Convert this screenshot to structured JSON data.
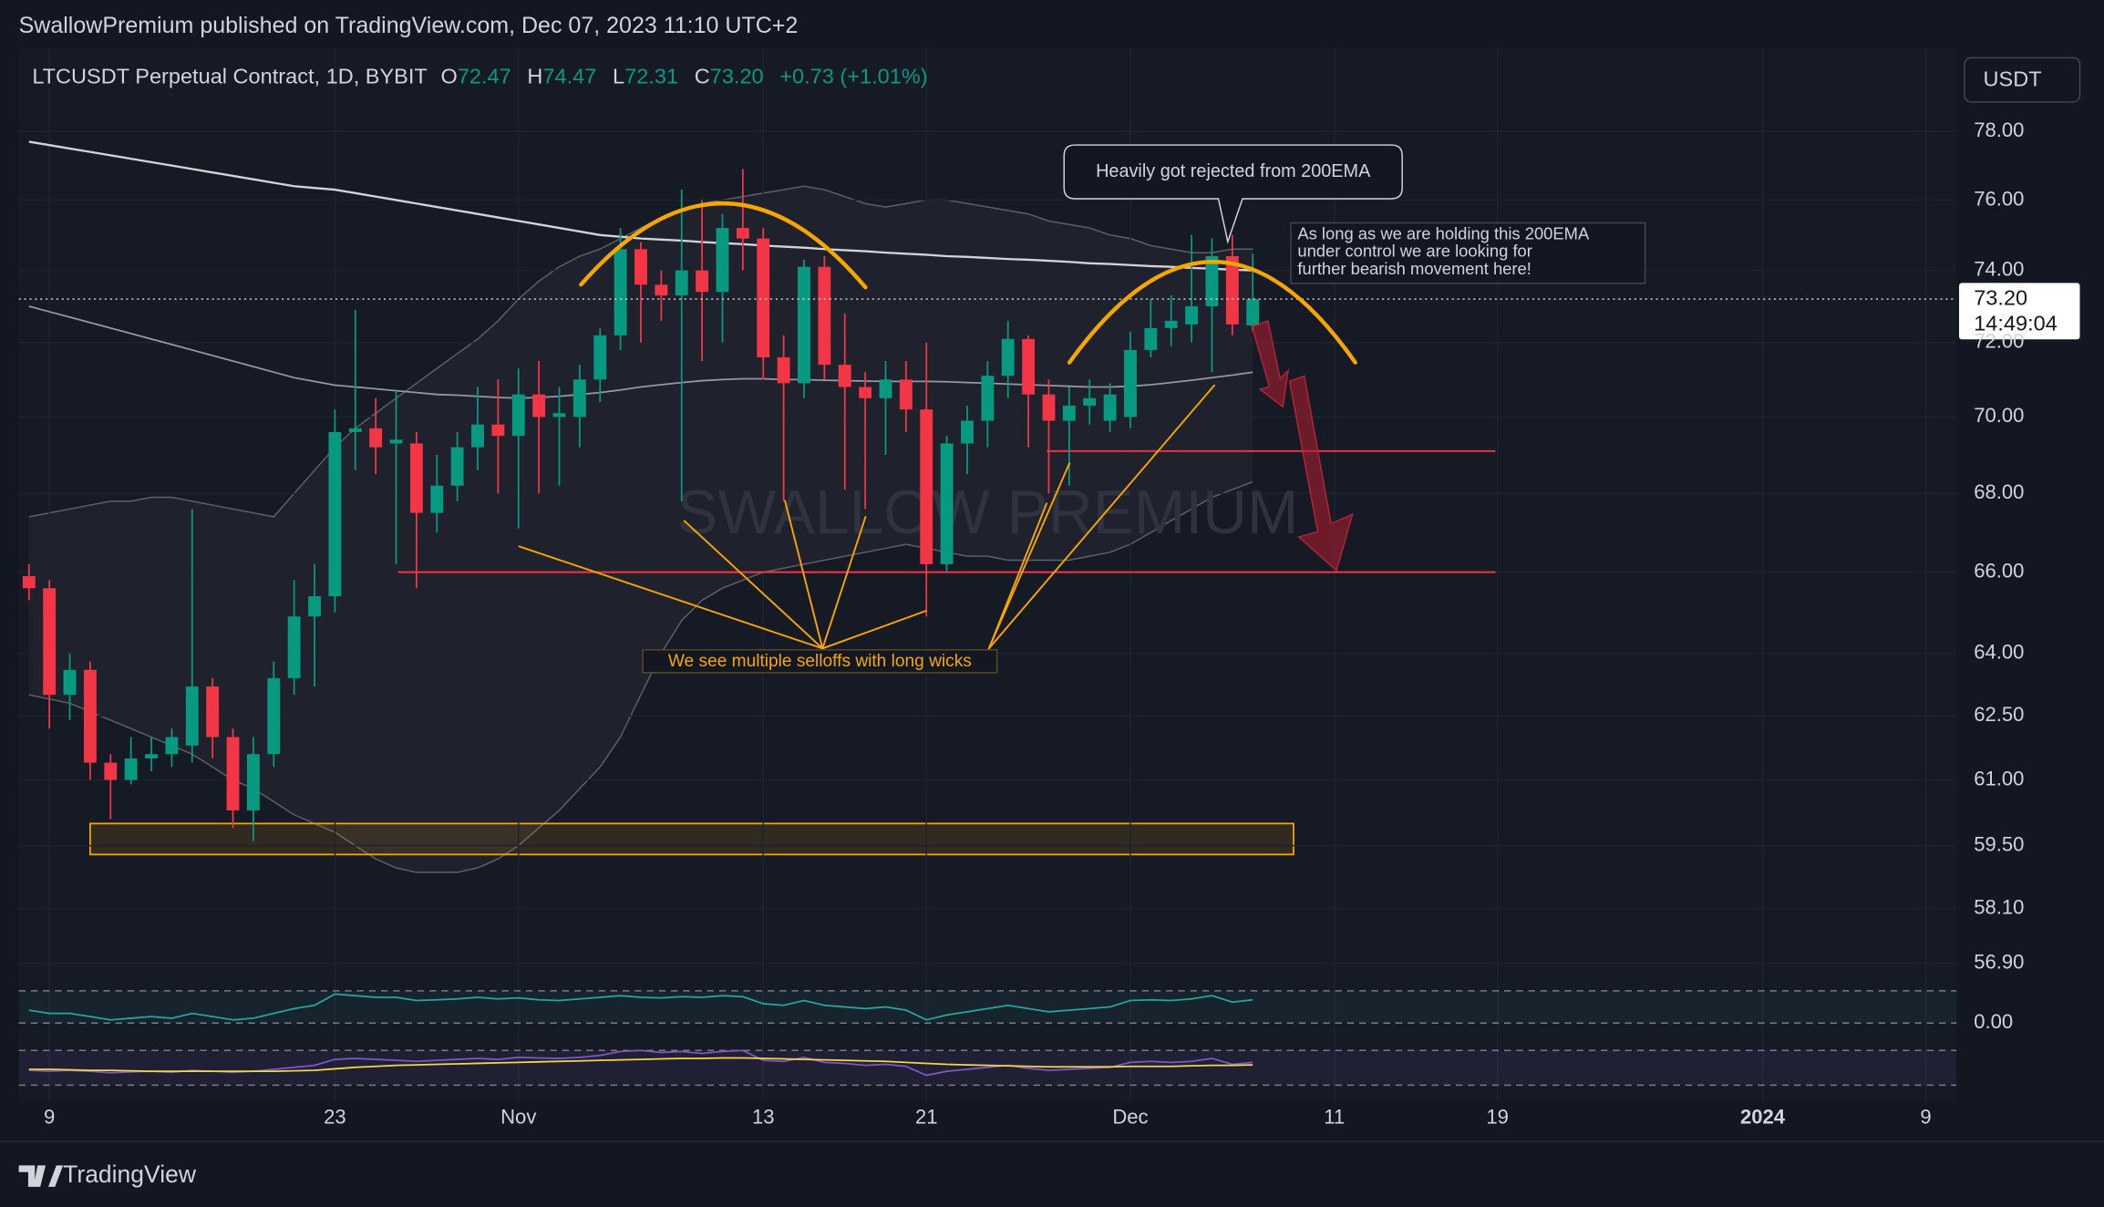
{
  "header": {
    "publisher": "SwallowPremium published on TradingView.com, Dec 07, 2023 11:10 UTC+2",
    "symbol": "LTCUSDT Perpetual Contract, 1D, BYBIT",
    "o": "O",
    "open": "72.47",
    "h": "H",
    "high": "74.47",
    "l": "L",
    "low": "72.31",
    "c": "C",
    "close": "73.20",
    "change": "+0.73 (+1.01%)",
    "currency": "USDT",
    "countdown": "14:49:04",
    "brand": "TradingView"
  },
  "chart_data": {
    "type": "candlestick",
    "log": true,
    "grid": true,
    "up_color": "#089981",
    "down_color": "#f23645",
    "xlim": [
      -0.5,
      94.5
    ],
    "xticks": [
      {
        "value": 1,
        "label": "9"
      },
      {
        "value": 15,
        "label": "23"
      },
      {
        "value": 24,
        "label": "Nov"
      },
      {
        "value": 36,
        "label": "13"
      },
      {
        "value": 44,
        "label": "21"
      },
      {
        "value": 54,
        "label": "Dec"
      },
      {
        "value": 64,
        "label": "11"
      },
      {
        "value": 72,
        "label": "19"
      },
      {
        "value": 85,
        "label": "2024"
      },
      {
        "value": 93,
        "label": "9"
      }
    ],
    "ylim": [
      56.6,
      80.5
    ],
    "yticks": [
      {
        "value": 78,
        "label": "78.00"
      },
      {
        "value": 76,
        "label": "76.00"
      },
      {
        "value": 74,
        "label": "74.00"
      },
      {
        "value": 72,
        "label": "72.00"
      },
      {
        "value": 70,
        "label": "70.00"
      },
      {
        "value": 68,
        "label": "68.00"
      },
      {
        "value": 66,
        "label": "66.00"
      },
      {
        "value": 64,
        "label": "64.00"
      },
      {
        "value": 62.5,
        "label": "62.50"
      },
      {
        "value": 61,
        "label": "61.00"
      },
      {
        "value": 59.5,
        "label": "59.50"
      },
      {
        "value": 58.1,
        "label": "58.10"
      },
      {
        "value": 56.9,
        "label": "56.90"
      }
    ],
    "candles": [
      {
        "open": 65.9,
        "high": 66.2,
        "low": 65.3,
        "close": 65.6
      },
      {
        "open": 65.6,
        "high": 65.8,
        "low": 62.2,
        "close": 63.0
      },
      {
        "open": 63.0,
        "high": 64.0,
        "low": 62.4,
        "close": 63.6
      },
      {
        "open": 63.6,
        "high": 63.8,
        "low": 61.0,
        "close": 61.4
      },
      {
        "open": 61.4,
        "high": 61.6,
        "low": 60.1,
        "close": 61.0
      },
      {
        "open": 61.0,
        "high": 62.0,
        "low": 60.9,
        "close": 61.5
      },
      {
        "open": 61.5,
        "high": 62.0,
        "low": 61.2,
        "close": 61.6
      },
      {
        "open": 61.6,
        "high": 62.2,
        "low": 61.3,
        "close": 62.0
      },
      {
        "open": 61.8,
        "high": 67.6,
        "low": 61.4,
        "close": 63.2
      },
      {
        "open": 63.2,
        "high": 63.4,
        "low": 61.5,
        "close": 62.0
      },
      {
        "open": 62.0,
        "high": 62.2,
        "low": 59.9,
        "close": 60.3
      },
      {
        "open": 60.3,
        "high": 62.0,
        "low": 59.6,
        "close": 61.6
      },
      {
        "open": 61.6,
        "high": 63.8,
        "low": 61.3,
        "close": 63.4
      },
      {
        "open": 63.4,
        "high": 65.8,
        "low": 63.0,
        "close": 64.9
      },
      {
        "open": 64.9,
        "high": 66.2,
        "low": 63.2,
        "close": 65.4
      },
      {
        "open": 65.4,
        "high": 70.2,
        "low": 65.0,
        "close": 69.6
      },
      {
        "open": 69.6,
        "high": 72.9,
        "low": 68.6,
        "close": 69.7
      },
      {
        "open": 69.7,
        "high": 70.5,
        "low": 68.5,
        "close": 69.2
      },
      {
        "open": 69.3,
        "high": 70.7,
        "low": 66.2,
        "close": 69.4
      },
      {
        "open": 69.3,
        "high": 69.6,
        "low": 65.6,
        "close": 67.5
      },
      {
        "open": 67.5,
        "high": 69.0,
        "low": 67.0,
        "close": 68.2
      },
      {
        "open": 68.2,
        "high": 69.6,
        "low": 67.8,
        "close": 69.2
      },
      {
        "open": 69.2,
        "high": 70.8,
        "low": 68.6,
        "close": 69.8
      },
      {
        "open": 69.8,
        "high": 71.0,
        "low": 68.0,
        "close": 69.5
      },
      {
        "open": 69.5,
        "high": 71.3,
        "low": 67.1,
        "close": 70.6
      },
      {
        "open": 70.6,
        "high": 71.5,
        "low": 68.0,
        "close": 70.0
      },
      {
        "open": 70.0,
        "high": 70.8,
        "low": 68.2,
        "close": 70.1
      },
      {
        "open": 70.0,
        "high": 71.4,
        "low": 69.2,
        "close": 71.0
      },
      {
        "open": 71.0,
        "high": 72.4,
        "low": 70.4,
        "close": 72.2
      },
      {
        "open": 72.2,
        "high": 75.2,
        "low": 71.8,
        "close": 74.6
      },
      {
        "open": 74.6,
        "high": 74.8,
        "low": 72.0,
        "close": 73.6
      },
      {
        "open": 73.6,
        "high": 74.0,
        "low": 72.6,
        "close": 73.3
      },
      {
        "open": 73.3,
        "high": 76.3,
        "low": 67.8,
        "close": 74.0
      },
      {
        "open": 74.0,
        "high": 76.0,
        "low": 71.5,
        "close": 73.4
      },
      {
        "open": 73.4,
        "high": 75.6,
        "low": 72.0,
        "close": 75.2
      },
      {
        "open": 75.2,
        "high": 76.9,
        "low": 74.0,
        "close": 74.9
      },
      {
        "open": 74.9,
        "high": 75.2,
        "low": 71.0,
        "close": 71.6
      },
      {
        "open": 71.6,
        "high": 72.2,
        "low": 67.8,
        "close": 70.9
      },
      {
        "open": 70.9,
        "high": 74.3,
        "low": 70.5,
        "close": 74.1
      },
      {
        "open": 74.1,
        "high": 74.4,
        "low": 71.0,
        "close": 71.4
      },
      {
        "open": 71.4,
        "high": 72.8,
        "low": 68.1,
        "close": 70.8
      },
      {
        "open": 70.8,
        "high": 71.2,
        "low": 67.6,
        "close": 70.5
      },
      {
        "open": 70.5,
        "high": 71.5,
        "low": 69.0,
        "close": 71.0
      },
      {
        "open": 71.0,
        "high": 71.5,
        "low": 69.6,
        "close": 70.2
      },
      {
        "open": 70.2,
        "high": 72.0,
        "low": 64.9,
        "close": 66.2
      },
      {
        "open": 66.2,
        "high": 69.5,
        "low": 66.0,
        "close": 69.3
      },
      {
        "open": 69.3,
        "high": 70.3,
        "low": 68.5,
        "close": 69.9
      },
      {
        "open": 69.9,
        "high": 71.5,
        "low": 69.2,
        "close": 71.1
      },
      {
        "open": 71.1,
        "high": 72.6,
        "low": 70.5,
        "close": 72.1
      },
      {
        "open": 72.1,
        "high": 72.2,
        "low": 69.2,
        "close": 70.6
      },
      {
        "open": 70.6,
        "high": 71.0,
        "low": 68.0,
        "close": 69.9
      },
      {
        "open": 69.9,
        "high": 70.8,
        "low": 68.2,
        "close": 70.3
      },
      {
        "open": 70.3,
        "high": 71.0,
        "low": 69.8,
        "close": 70.5
      },
      {
        "open": 69.9,
        "high": 70.9,
        "low": 69.6,
        "close": 70.6
      },
      {
        "open": 70.0,
        "high": 72.3,
        "low": 69.7,
        "close": 71.8
      },
      {
        "open": 71.8,
        "high": 73.2,
        "low": 71.6,
        "close": 72.4
      },
      {
        "open": 72.4,
        "high": 73.3,
        "low": 71.9,
        "close": 72.6
      },
      {
        "open": 72.5,
        "high": 75.0,
        "low": 72.0,
        "close": 73.0
      },
      {
        "open": 73.0,
        "high": 74.9,
        "low": 71.2,
        "close": 74.4
      },
      {
        "open": 74.4,
        "high": 75.0,
        "low": 72.2,
        "close": 72.5
      },
      {
        "open": 72.47,
        "high": 74.47,
        "low": 72.31,
        "close": 73.2
      }
    ],
    "overlays": [
      {
        "color": "#d1d4dc",
        "values": [
          77.7,
          77.6,
          77.5,
          77.4,
          77.3,
          77.2,
          77.1,
          77.0,
          76.9,
          76.8,
          76.7,
          76.6,
          76.5,
          76.4,
          76.35,
          76.3,
          76.2,
          76.1,
          76.0,
          75.9,
          75.8,
          75.7,
          75.6,
          75.5,
          75.4,
          75.3,
          75.2,
          75.1,
          75.0,
          74.95,
          74.9,
          74.87,
          74.84,
          74.8,
          74.77,
          74.74,
          74.7,
          74.67,
          74.64,
          74.6,
          74.57,
          74.54,
          74.5,
          74.47,
          74.44,
          74.4,
          74.38,
          74.35,
          74.32,
          74.3,
          74.27,
          74.24,
          74.2,
          74.18,
          74.15,
          74.12,
          74.1,
          74.07,
          74.05,
          74.02,
          74.0
        ]
      },
      {
        "color": "#9598a1",
        "values": [
          73.0,
          72.85,
          72.7,
          72.55,
          72.4,
          72.25,
          72.1,
          71.95,
          71.8,
          71.65,
          71.5,
          71.35,
          71.2,
          71.05,
          70.95,
          70.85,
          70.8,
          70.75,
          70.7,
          70.65,
          70.6,
          70.58,
          70.55,
          70.52,
          70.5,
          70.52,
          70.55,
          70.6,
          70.65,
          70.72,
          70.8,
          70.86,
          70.92,
          70.97,
          71.0,
          71.02,
          71.02,
          71.0,
          71.0,
          70.98,
          70.97,
          70.96,
          70.95,
          70.95,
          70.95,
          70.94,
          70.92,
          70.9,
          70.88,
          70.86,
          70.84,
          70.82,
          70.8,
          70.8,
          70.82,
          70.86,
          70.92,
          70.98,
          71.05,
          71.12,
          71.2
        ]
      }
    ],
    "band": {
      "color": "#5d606b",
      "upper": [
        67.4,
        67.5,
        67.6,
        67.7,
        67.8,
        67.8,
        67.9,
        67.9,
        67.8,
        67.7,
        67.6,
        67.5,
        67.4,
        68.0,
        68.6,
        69.2,
        69.7,
        70.1,
        70.5,
        70.9,
        71.3,
        71.7,
        72.1,
        72.6,
        73.2,
        73.7,
        74.1,
        74.4,
        74.6,
        74.9,
        75.2,
        75.5,
        75.7,
        75.9,
        76.0,
        76.1,
        76.2,
        76.3,
        76.4,
        76.3,
        76.1,
        75.9,
        75.8,
        75.9,
        76.0,
        76.0,
        75.9,
        75.8,
        75.7,
        75.6,
        75.4,
        75.3,
        75.2,
        75.0,
        74.9,
        74.7,
        74.6,
        74.5,
        74.5,
        74.6,
        74.6
      ],
      "lower": [
        63.0,
        62.9,
        62.8,
        62.6,
        62.4,
        62.2,
        62.0,
        61.8,
        61.6,
        61.3,
        61.0,
        60.8,
        60.5,
        60.2,
        60.0,
        59.8,
        59.5,
        59.2,
        59.0,
        58.9,
        58.9,
        58.9,
        59.0,
        59.2,
        59.5,
        59.9,
        60.3,
        60.8,
        61.3,
        62.0,
        63.0,
        64.0,
        64.8,
        65.3,
        65.6,
        65.8,
        66.0,
        66.1,
        66.2,
        66.3,
        66.4,
        66.5,
        66.6,
        66.7,
        66.6,
        66.5,
        66.4,
        66.4,
        66.3,
        66.3,
        66.3,
        66.3,
        66.4,
        66.5,
        66.7,
        67.0,
        67.3,
        67.6,
        67.9,
        68.1,
        68.3
      ]
    },
    "levels": [
      {
        "value": 69.1,
        "from": 49.9,
        "to": 71.9,
        "color": "#f23645"
      },
      {
        "value": 66.0,
        "from": 18.1,
        "to": 71.9,
        "color": "#f23645"
      }
    ],
    "zone": {
      "low": 59.3,
      "high": 60.0,
      "from": 3.0,
      "to": 62.0,
      "color": "#f7a600"
    },
    "annotations": {
      "rejected": "Heavily got rejected from 200EMA",
      "holding": [
        "As long as we are holding this 200EMA",
        "under control we are looking for",
        "further bearish movement here!"
      ],
      "selloffs": "We see multiple selloffs with long wicks",
      "watermark": "SWALLOW PREMIUM"
    },
    "oscillators": [
      {
        "ylim": [
          0,
          1
        ],
        "yticks": [
          {
            "value": 0,
            "label": "0.00"
          }
        ],
        "levels": [
          1,
          0
        ],
        "fill": "rgba(38,166,154,0.08)",
        "series": [
          {
            "color": "#26a69a",
            "values": [
              0.4,
              0.3,
              0.3,
              0.2,
              0.1,
              0.15,
              0.2,
              0.15,
              0.3,
              0.2,
              0.1,
              0.15,
              0.3,
              0.45,
              0.55,
              0.9,
              0.85,
              0.8,
              0.8,
              0.7,
              0.72,
              0.75,
              0.8,
              0.75,
              0.78,
              0.72,
              0.7,
              0.75,
              0.8,
              0.85,
              0.8,
              0.78,
              0.82,
              0.8,
              0.85,
              0.82,
              0.6,
              0.55,
              0.7,
              0.55,
              0.5,
              0.45,
              0.5,
              0.4,
              0.1,
              0.25,
              0.35,
              0.45,
              0.55,
              0.45,
              0.35,
              0.4,
              0.45,
              0.5,
              0.7,
              0.72,
              0.7,
              0.75,
              0.85,
              0.65,
              0.72
            ]
          }
        ]
      },
      {
        "ylim": [
          0,
          100
        ],
        "levels": [
          80,
          10
        ],
        "fill": "rgba(126,87,194,0.1)",
        "series": [
          {
            "color": "#7e57c2",
            "values": [
              40,
              38,
              40,
              38,
              35,
              37,
              38,
              36,
              40,
              38,
              36,
              38,
              42,
              46,
              50,
              62,
              64,
              62,
              60,
              58,
              60,
              62,
              64,
              62,
              66,
              65,
              64,
              66,
              70,
              78,
              80,
              76,
              78,
              74,
              78,
              80,
              60,
              58,
              66,
              56,
              54,
              50,
              52,
              48,
              30,
              38,
              42,
              46,
              50,
              44,
              40,
              42,
              44,
              46,
              56,
              58,
              56,
              58,
              64,
              52,
              56
            ]
          },
          {
            "color": "#f5d547",
            "values": [
              42,
              42,
              41,
              40,
              40,
              39,
              38,
              38,
              38,
              38,
              38,
              38,
              38,
              39,
              40,
              43,
              46,
              48,
              50,
              51,
              52,
              53,
              54,
              55,
              56,
              57,
              58,
              59,
              60,
              61,
              62,
              63,
              64,
              64,
              65,
              65,
              64,
              63,
              62,
              61,
              60,
              59,
              58,
              56,
              54,
              52,
              51,
              50,
              49,
              48,
              47,
              47,
              47,
              47,
              48,
              48,
              48,
              49,
              50,
              50,
              51
            ]
          }
        ]
      }
    ]
  }
}
